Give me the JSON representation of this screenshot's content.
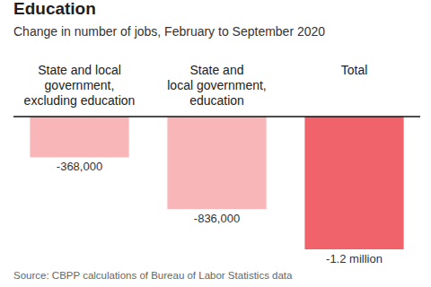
{
  "chart_data": {
    "type": "bar",
    "title": "Education",
    "subtitle": "Change in number of jobs, February to September 2020",
    "categories": [
      "State and local\ngovernment,\nexcluding education",
      "State and\nlocal government,\neducation",
      "Total"
    ],
    "values": [
      -368000,
      -836000,
      -1200000
    ],
    "value_labels": [
      "-368,000",
      "-836,000",
      "-1.2 million"
    ],
    "colors": [
      "#f8b6b9",
      "#f8b6b9",
      "#f1636b"
    ],
    "ylim": [
      -1200000,
      0
    ],
    "tick_labels": false,
    "data_labels": true,
    "grid": false,
    "source": "Source: CBPP calculations of Bureau of Labor Statistics data"
  }
}
